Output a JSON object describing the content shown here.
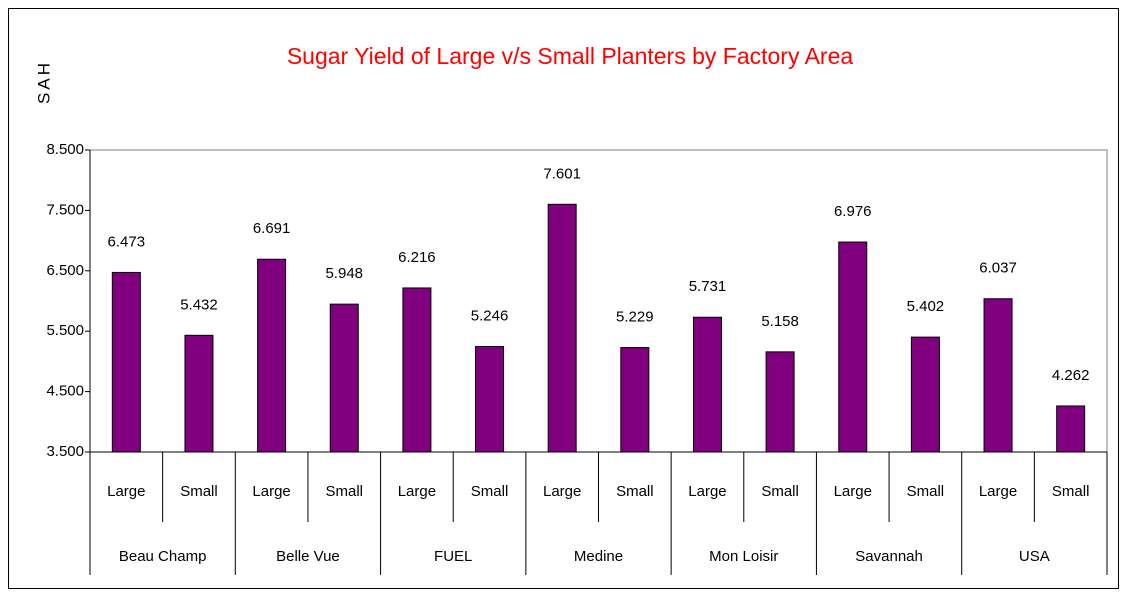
{
  "chart_data": {
    "type": "bar",
    "title": "Sugar Yield of Large v/s Small Planters by Factory Area",
    "y_label": "SAH",
    "groups": [
      "Beau Champ",
      "Belle Vue",
      "FUEL",
      "Medine",
      "Mon Loisir",
      "Savannah",
      "USA"
    ],
    "categories": [
      "Large",
      "Small",
      "Large",
      "Small",
      "Large",
      "Small",
      "Large",
      "Small",
      "Large",
      "Small",
      "Large",
      "Small",
      "Large",
      "Small"
    ],
    "values": [
      6.473,
      5.432,
      6.691,
      5.948,
      6.216,
      5.246,
      7.601,
      5.229,
      5.731,
      5.158,
      6.976,
      5.402,
      6.037,
      4.262
    ],
    "value_labels": [
      "6.473",
      "5.432",
      "6.691",
      "5.948",
      "6.216",
      "5.246",
      "7.601",
      "5.229",
      "5.731",
      "5.158",
      "6.976",
      "5.402",
      "6.037",
      "4.262"
    ],
    "color": "#800080",
    "ylim": [
      3.5,
      8.5
    ],
    "yticks": [
      {
        "value": 3.5,
        "label": "3.500"
      },
      {
        "value": 4.5,
        "label": "4.500"
      },
      {
        "value": 5.5,
        "label": "5.500"
      },
      {
        "value": 6.5,
        "label": "6.500"
      },
      {
        "value": 7.5,
        "label": "7.500"
      },
      {
        "value": 8.5,
        "label": "8.500"
      }
    ],
    "grid": false
  }
}
